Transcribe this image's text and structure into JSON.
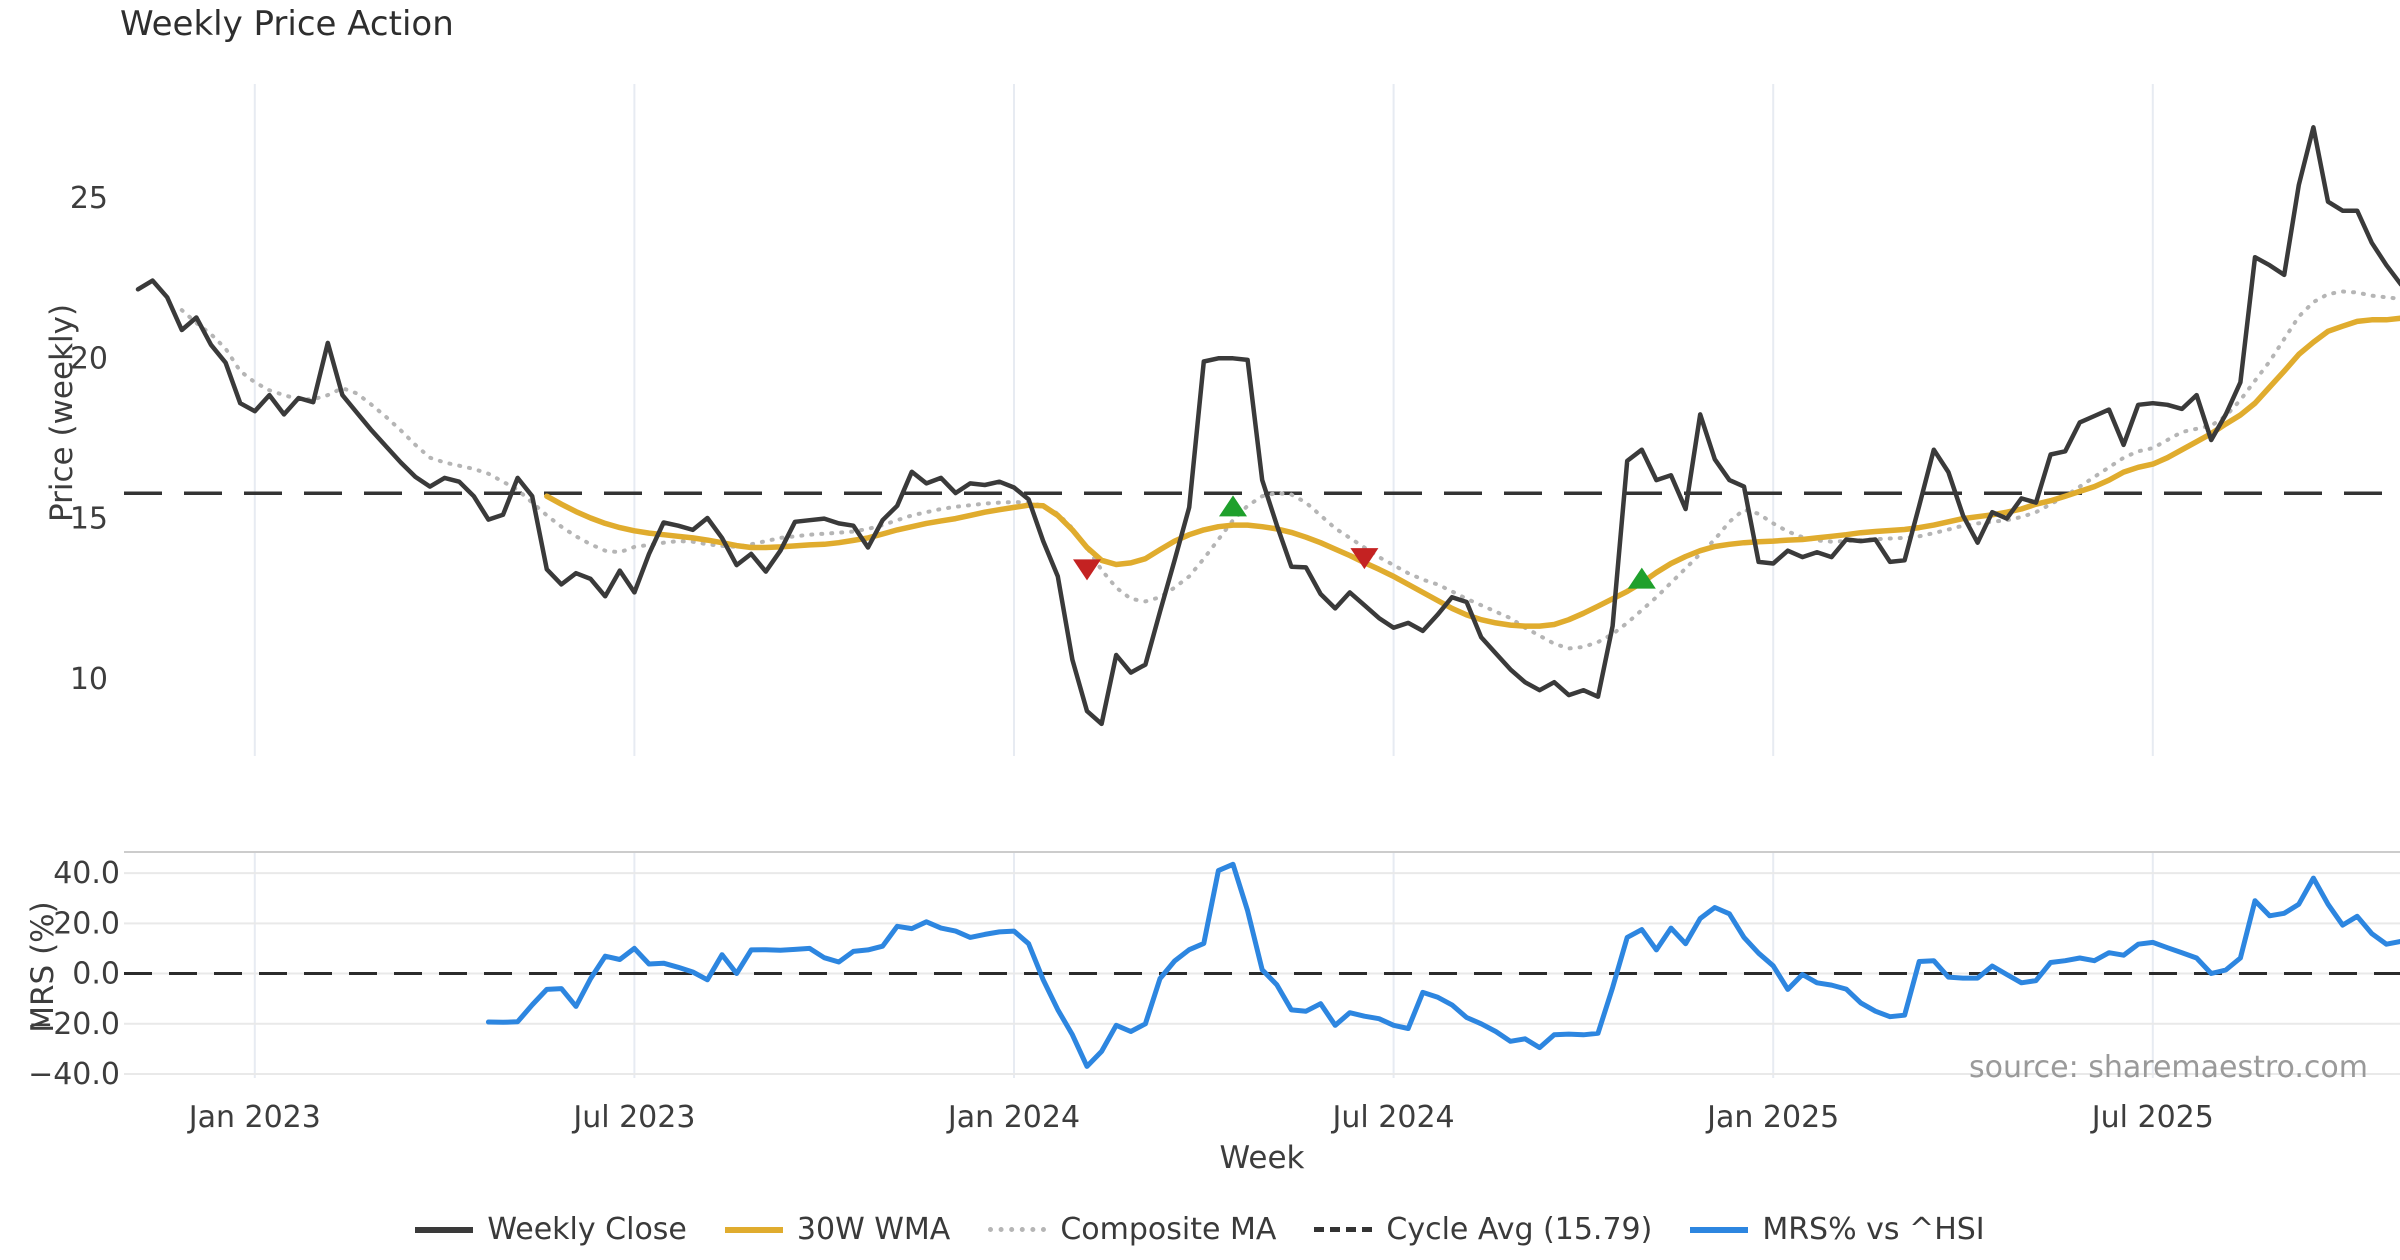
{
  "chart_data": {
    "type": "line",
    "title": "Weekly Price Action",
    "xlabel": "Week",
    "source_note": "source: sharemaestro.com",
    "x": {
      "n_points": 156,
      "tick_indices": [
        8,
        34,
        60,
        86,
        112,
        138
      ],
      "tick_labels": [
        "Jan 2023",
        "Jul 2023",
        "Jan 2024",
        "Jul 2024",
        "Jan 2025",
        "Jul 2025"
      ]
    },
    "panels": [
      {
        "name": "price",
        "ylabel": "Price (weekly)",
        "ylim": [
          7.6,
          28.55
        ],
        "yticks": [
          25,
          20,
          15,
          10
        ],
        "ytick_labels": [
          "25",
          "20",
          "15",
          "10"
        ],
        "cycle_avg": 15.79,
        "series": [
          {
            "name": "Weekly Close",
            "color": "#3a3a3a",
            "style": "solid",
            "width": 4.5,
            "start_index": 0,
            "values": [
              22.15,
              22.42,
              21.9,
              20.88,
              21.27,
              20.42,
              19.86,
              18.6,
              18.35,
              18.85,
              18.25,
              18.76,
              18.63,
              20.48,
              18.85,
              18.3,
              17.75,
              17.25,
              16.75,
              16.3,
              16.0,
              16.27,
              16.15,
              15.7,
              14.97,
              15.12,
              16.27,
              15.7,
              13.42,
              12.95,
              13.3,
              13.12,
              12.58,
              13.38,
              12.7,
              13.9,
              14.88,
              14.78,
              14.65,
              15.02,
              14.4,
              13.55,
              13.9,
              13.35,
              14.0,
              14.9,
              14.95,
              15.0,
              14.85,
              14.78,
              14.1,
              14.95,
              15.4,
              16.46,
              16.1,
              16.27,
              15.8,
              16.1,
              16.05,
              16.15,
              15.97,
              15.6,
              14.3,
              13.2,
              10.6,
              9.0,
              8.6,
              10.75,
              10.2,
              10.45,
              12.1,
              13.7,
              15.35,
              19.9,
              20.0,
              20.0,
              19.95,
              16.2,
              14.8,
              13.5,
              13.48,
              12.65,
              12.2,
              12.7,
              12.3,
              11.9,
              11.6,
              11.75,
              11.5,
              12.0,
              12.55,
              12.4,
              11.3,
              10.8,
              10.3,
              9.9,
              9.65,
              9.9,
              9.5,
              9.65,
              9.45,
              11.65,
              16.8,
              17.15,
              16.2,
              16.35,
              15.3,
              18.25,
              16.85,
              16.2,
              16.0,
              13.65,
              13.6,
              14.0,
              13.8,
              13.95,
              13.8,
              14.35,
              14.3,
              14.35,
              13.65,
              13.7,
              15.4,
              17.15,
              16.45,
              15.1,
              14.25,
              15.2,
              15.0,
              15.63,
              15.5,
              17.0,
              17.1,
              18.0,
              18.2,
              18.4,
              17.3,
              18.55,
              18.6,
              18.55,
              18.42,
              18.85,
              17.45,
              18.25,
              19.25,
              23.15,
              22.9,
              22.6,
              25.4,
              27.2,
              24.88,
              24.6,
              24.6,
              23.6,
              22.9,
              22.3
            ]
          },
          {
            "name": "30W WMA",
            "color": "#e0ac2e",
            "style": "solid",
            "width": 5.5,
            "start_index": 28,
            "values": [
              15.7,
              15.45,
              15.22,
              15.02,
              14.85,
              14.72,
              14.62,
              14.55,
              14.5,
              14.45,
              14.4,
              14.33,
              14.25,
              14.16,
              14.1,
              14.1,
              14.12,
              14.15,
              14.18,
              14.2,
              14.25,
              14.32,
              14.4,
              14.52,
              14.65,
              14.75,
              14.85,
              14.93,
              15.0,
              15.1,
              15.2,
              15.28,
              15.35,
              15.42,
              15.4,
              15.1,
              14.65,
              14.1,
              13.7,
              13.57,
              13.62,
              13.75,
              14.03,
              14.3,
              14.5,
              14.65,
              14.75,
              14.8,
              14.8,
              14.75,
              14.68,
              14.57,
              14.42,
              14.25,
              14.05,
              13.85,
              13.63,
              13.42,
              13.2,
              12.95,
              12.7,
              12.45,
              12.2,
              12.0,
              11.85,
              11.75,
              11.68,
              11.65,
              11.65,
              11.7,
              11.85,
              12.05,
              12.27,
              12.5,
              12.73,
              13.0,
              13.32,
              13.6,
              13.82,
              14.0,
              14.13,
              14.2,
              14.25,
              14.28,
              14.3,
              14.33,
              14.35,
              14.4,
              14.45,
              14.5,
              14.56,
              14.6,
              14.63,
              14.66,
              14.72,
              14.8,
              14.9,
              15.0,
              15.06,
              15.12,
              15.2,
              15.3,
              15.45,
              15.56,
              15.7,
              15.85,
              16.0,
              16.2,
              16.45,
              16.6,
              16.7,
              16.9,
              17.15,
              17.4,
              17.65,
              17.95,
              18.23,
              18.6,
              19.1,
              19.6,
              20.12,
              20.5,
              20.84,
              21.0,
              21.15,
              21.2,
              21.2,
              21.25
            ]
          },
          {
            "name": "Composite MA",
            "color": "#b5b5b5",
            "style": "dotted",
            "width": 4,
            "start_index": 3,
            "values": [
              21.5,
              21.1,
              20.75,
              20.3,
              19.6,
              19.25,
              19.0,
              18.85,
              18.72,
              18.72,
              18.85,
              19.07,
              18.9,
              18.55,
              18.17,
              17.75,
              17.3,
              16.9,
              16.75,
              16.65,
              16.55,
              16.4,
              16.15,
              15.9,
              15.5,
              15.1,
              14.75,
              14.45,
              14.2,
              14.0,
              13.95,
              14.12,
              14.18,
              14.25,
              14.3,
              14.28,
              14.2,
              14.15,
              14.12,
              14.2,
              14.3,
              14.4,
              14.45,
              14.5,
              14.53,
              14.56,
              14.6,
              14.68,
              14.8,
              14.95,
              15.1,
              15.2,
              15.3,
              15.37,
              15.42,
              15.47,
              15.5,
              15.52,
              15.5,
              15.4,
              15.15,
              14.7,
              14.1,
              13.4,
              12.85,
              12.5,
              12.42,
              12.55,
              12.85,
              13.2,
              13.75,
              14.35,
              14.95,
              15.4,
              15.7,
              15.8,
              15.75,
              15.5,
              15.1,
              14.7,
              14.4,
              14.1,
              13.8,
              13.55,
              13.3,
              13.1,
              12.95,
              12.73,
              12.5,
              12.3,
              12.1,
              11.9,
              11.6,
              11.35,
              11.1,
              10.95,
              11.0,
              11.15,
              11.4,
              11.75,
              12.15,
              12.55,
              13.0,
              13.45,
              13.9,
              14.35,
              14.9,
              15.28,
              15.15,
              14.85,
              14.6,
              14.42,
              14.32,
              14.28,
              14.3,
              14.33,
              14.36,
              14.38,
              14.4,
              14.45,
              14.55,
              14.66,
              14.78,
              14.85,
              14.9,
              14.95,
              15.05,
              15.2,
              15.45,
              15.7,
              16.0,
              16.3,
              16.6,
              16.9,
              17.1,
              17.2,
              17.45,
              17.7,
              17.8,
              17.9,
              18.2,
              18.7,
              19.3,
              19.9,
              20.6,
              21.3,
              21.75,
              22.0,
              22.08,
              22.05,
              21.95,
              21.9,
              21.85
            ]
          }
        ],
        "markers": [
          {
            "type": "sell",
            "index": 65,
            "value": 13.45
          },
          {
            "type": "buy",
            "index": 75,
            "value": 15.35
          },
          {
            "type": "sell",
            "index": 84,
            "value": 13.8
          },
          {
            "type": "buy",
            "index": 103,
            "value": 13.1
          }
        ],
        "marker_colors": {
          "buy": "#1fa02c",
          "sell": "#c42222"
        }
      },
      {
        "name": "mrs",
        "ylabel": "MRS (%)",
        "ylim": [
          -41.6,
          48.4
        ],
        "yticks": [
          40,
          20,
          0,
          -20,
          -40
        ],
        "ytick_labels": [
          "40.0",
          "20.0",
          "0.0",
          "−20.0",
          "−40.0"
        ],
        "zero_line": 0.0,
        "series": [
          {
            "name": "MRS% vs ^HSI",
            "color": "#2d86e0",
            "style": "solid",
            "width": 5,
            "start_index": 24,
            "values": [
              -19.3,
              -19.4,
              -19.2,
              -12.5,
              -6.3,
              -6.0,
              -13.1,
              -2.0,
              6.9,
              5.6,
              10.0,
              3.8,
              4.1,
              2.5,
              0.6,
              -2.5,
              7.5,
              0.0,
              9.4,
              9.5,
              9.3,
              9.6,
              10.0,
              6.3,
              4.6,
              8.8,
              9.4,
              10.9,
              18.8,
              17.9,
              20.6,
              18.1,
              16.9,
              14.4,
              15.6,
              16.6,
              16.9,
              11.9,
              -2.5,
              -14.4,
              -24.4,
              -37.0,
              -31.0,
              -20.6,
              -23.1,
              -20.0,
              -2.0,
              5.0,
              9.5,
              12.0,
              41.0,
              43.5,
              25.0,
              1.5,
              -4.5,
              -14.5,
              -15.0,
              -12.0,
              -20.6,
              -15.6,
              -17.0,
              -18.0,
              -20.6,
              -21.9,
              -7.5,
              -9.4,
              -12.5,
              -17.5,
              -20.0,
              -23.1,
              -27.0,
              -26.0,
              -29.5,
              -24.4,
              -24.1,
              -24.4,
              -23.8,
              -5.6,
              14.4,
              17.5,
              9.4,
              18.1,
              11.9,
              21.9,
              26.3,
              23.8,
              14.4,
              8.1,
              3.1,
              -6.3,
              -0.4,
              -3.7,
              -4.6,
              -6.2,
              -11.7,
              -15.0,
              -17.2,
              -16.6,
              4.8,
              5.1,
              -1.4,
              -1.8,
              -1.8,
              3.0,
              -0.4,
              -3.7,
              -2.8,
              4.4,
              5.1,
              6.2,
              5.1,
              8.3,
              7.3,
              11.7,
              12.4,
              10.3,
              8.3,
              6.2,
              0.0,
              1.4,
              6.2,
              29.0,
              23.0,
              24.0,
              27.6,
              38.0,
              27.6,
              19.3,
              22.8,
              15.9,
              11.7,
              12.8
            ]
          }
        ]
      }
    ],
    "legend": {
      "items": [
        {
          "label": "Weekly Close",
          "color": "#3a3a3a",
          "style": "solid"
        },
        {
          "label": "30W WMA",
          "color": "#e0ac2e",
          "style": "solid"
        },
        {
          "label": "Composite MA",
          "color": "#b5b5b5",
          "style": "dotted"
        },
        {
          "label": "Cycle Avg (15.79)",
          "color": "#333333",
          "style": "dashed"
        },
        {
          "label": "MRS% vs ^HSI",
          "color": "#2d86e0",
          "style": "solid"
        }
      ]
    },
    "colors": {
      "grid_vertical": "#e7ebf2",
      "grid_horizontal": "#e9e9e9",
      "spine": "#cccccc",
      "cycle_avg_line": "#333333",
      "zero_line": "#2b2b2b",
      "tick_text": "#3d3d3d"
    }
  }
}
